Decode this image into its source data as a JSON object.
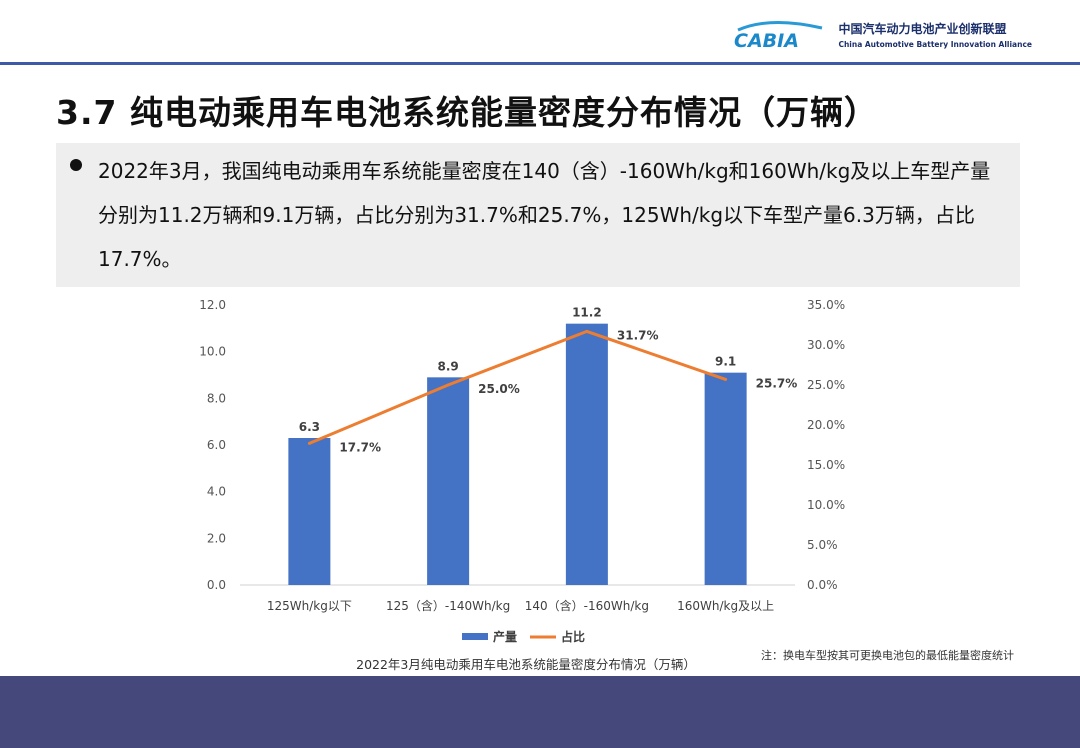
{
  "header": {
    "logo_text": "CABIA",
    "org_cn": "中国汽车动力电池产业创新联盟",
    "org_en": "China Automotive Battery Innovation Alliance"
  },
  "page_title": "3.7 纯电动乘用车电池系统能量密度分布情况（万辆）",
  "bullet_text": "2022年3月，我国纯电动乘用车系统能量密度在140（含）-160Wh/kg和160Wh/kg及以上车型产量分别为11.2万辆和9.1万辆，占比分别为31.7%和25.7%，125Wh/kg以下车型产量6.3万辆，占比17.7%。",
  "chart_data": {
    "type": "bar",
    "categories": [
      "125Wh/kg以下",
      "125（含）-140Wh/kg",
      "140（含）-160Wh/kg",
      "160Wh/kg及以上"
    ],
    "series": [
      {
        "name": "产量",
        "type": "bar",
        "axis": "left",
        "values": [
          6.3,
          8.9,
          11.2,
          9.1
        ],
        "labels": [
          "6.3",
          "8.9",
          "11.2",
          "9.1"
        ],
        "color": "#4472c4"
      },
      {
        "name": "占比",
        "type": "line",
        "axis": "right",
        "values": [
          17.7,
          25.0,
          31.7,
          25.7
        ],
        "labels": [
          "17.7%",
          "25.0%",
          "31.7%",
          "25.7%"
        ],
        "color": "#ed7d31"
      }
    ],
    "ylim": [
      0,
      12
    ],
    "yticks": [
      "0.0",
      "2.0",
      "4.0",
      "6.0",
      "8.0",
      "10.0",
      "12.0"
    ],
    "y2lim": [
      0,
      35
    ],
    "y2ticks": [
      "0.0%",
      "5.0%",
      "10.0%",
      "15.0%",
      "20.0%",
      "25.0%",
      "30.0%",
      "35.0%"
    ],
    "caption": "2022年3月纯电动乘用车电池系统能量密度分布情况（万辆）",
    "legend_position": "bottom",
    "grid": false
  },
  "note": "注：换电车型按其可更换电池包的最低能量密度统计"
}
